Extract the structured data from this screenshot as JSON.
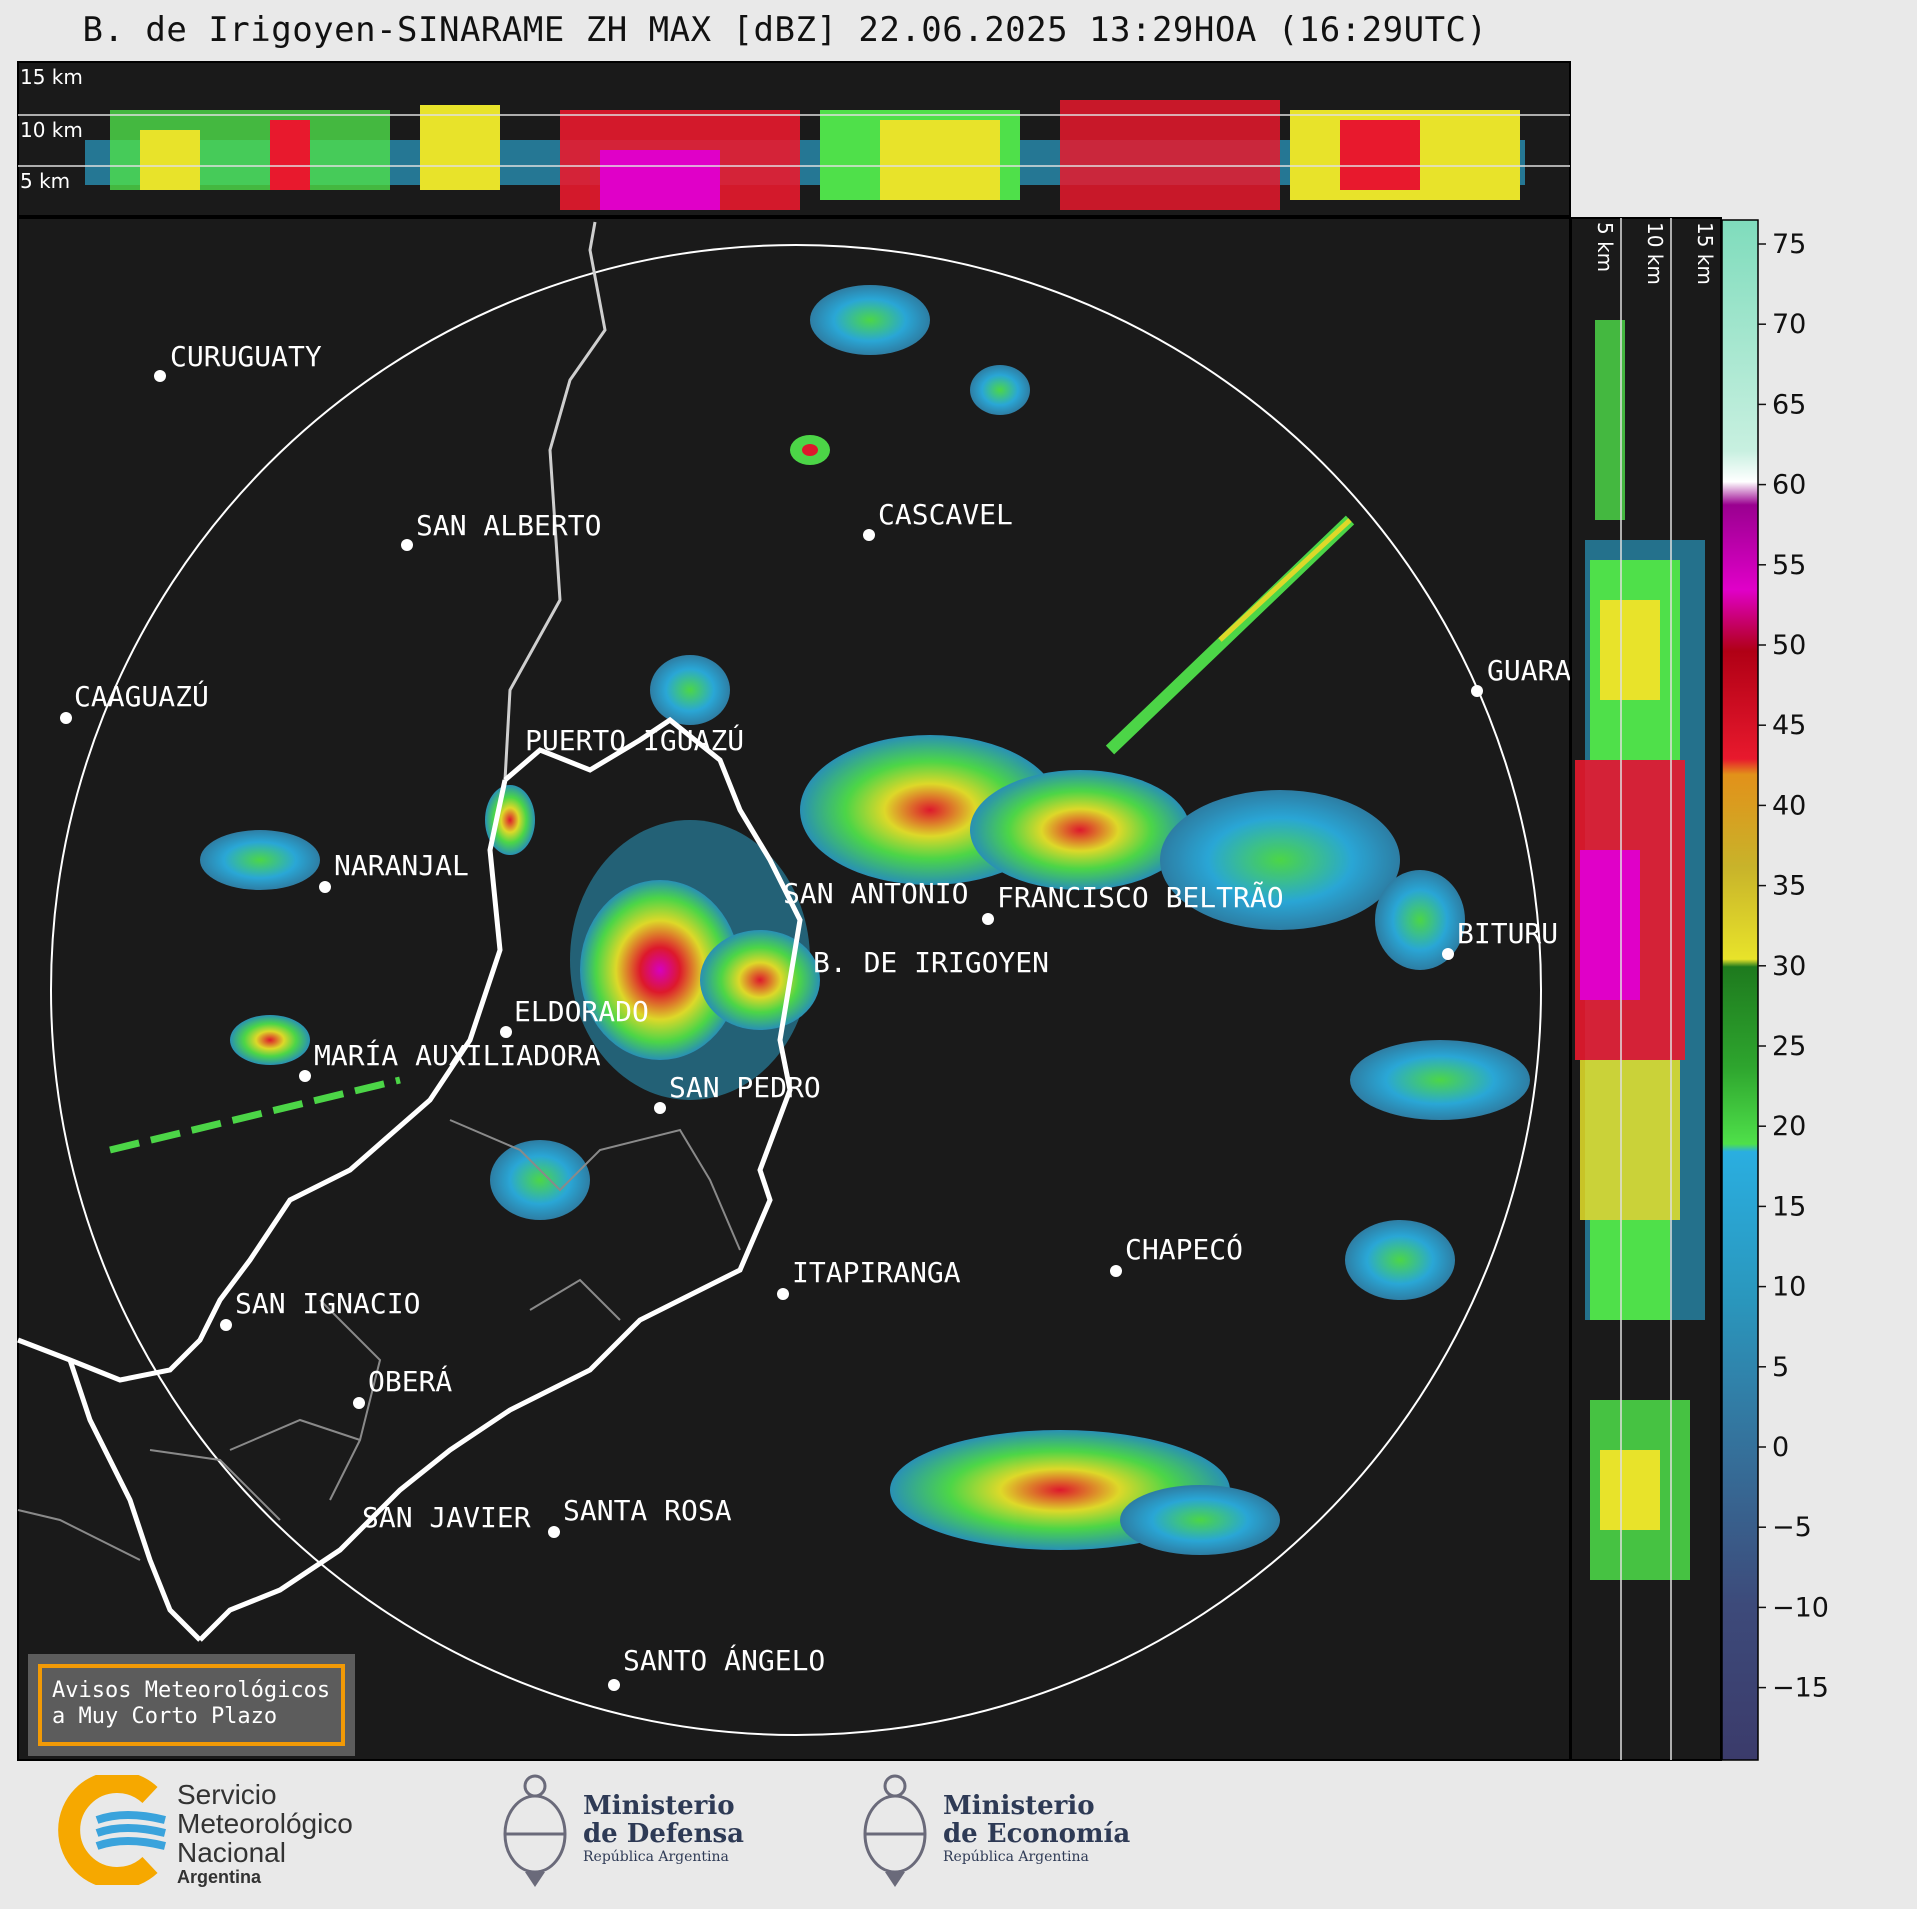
{
  "title": "B. de Irigoyen-SINARAME ZH MAX [dBZ] 22.06.2025 13:29HOA (16:29UTC)",
  "cross_section_top": {
    "labels": [
      "15 km",
      "10 km",
      "5 km"
    ]
  },
  "cross_section_right": {
    "labels": [
      "5 km",
      "10 km",
      "15 km"
    ]
  },
  "cities": [
    {
      "name": "CURUGUATY"
    },
    {
      "name": "SAN ALBERTO"
    },
    {
      "name": "CASCAVEL"
    },
    {
      "name": "CAAGUAZÚ"
    },
    {
      "name": "GUARA"
    },
    {
      "name": "PUERTO IGUAZÚ"
    },
    {
      "name": "NARANJAL"
    },
    {
      "name": "SAN ANTONIO"
    },
    {
      "name": "FRANCISCO BELTRÃO"
    },
    {
      "name": "BITURU"
    },
    {
      "name": "B. DE IRIGOYEN"
    },
    {
      "name": "ELDORADO"
    },
    {
      "name": "MARÍA AUXILIADORA"
    },
    {
      "name": "SAN PEDRO"
    },
    {
      "name": "ITAPIRANGA"
    },
    {
      "name": "CHAPECÓ"
    },
    {
      "name": "SAN IGNACIO"
    },
    {
      "name": "OBERÁ"
    },
    {
      "name": "SAN JAVIER"
    },
    {
      "name": "SANTA ROSA"
    },
    {
      "name": "SANTO ÁNGELO"
    }
  ],
  "colorbar": {
    "unit": "dBZ",
    "ticks": [
      "75",
      "70",
      "65",
      "60",
      "55",
      "50",
      "45",
      "40",
      "35",
      "30",
      "25",
      "20",
      "15",
      "10",
      "5",
      "0",
      "−5",
      "−10",
      "−15"
    ],
    "colors": {
      "-15": "#3b3b6b",
      "-10": "#3d4a7a",
      "-5": "#3a5d8a",
      "0": "#35709a",
      "5": "#2f83ab",
      "10": "#2a97bd",
      "15": "#2aaee0",
      "20": "#4fe04a",
      "25": "#2ea52e",
      "30": "#e8e32a",
      "35": "#c8b32a",
      "40": "#e2911a",
      "45": "#e8192d",
      "50": "#b00015",
      "55": "#e000c8",
      "60": "#ffffff",
      "65": "#c8f0e0",
      "70": "#9fe6c8",
      "75": "#7fdcbc"
    }
  },
  "warning_box": {
    "line1": "Avisos Meteorológicos",
    "line2": "a Muy Corto Plazo"
  },
  "logos": {
    "smn": {
      "line1": "Servicio",
      "line2": "Meteorológico",
      "line3": "Nacional",
      "line4": "Argentina"
    },
    "defensa": {
      "line1": "Ministerio",
      "line2": "de Defensa",
      "line3": "República Argentina"
    },
    "economia": {
      "line1": "Ministerio",
      "line2": "de Economía",
      "line3": "República Argentina"
    }
  }
}
